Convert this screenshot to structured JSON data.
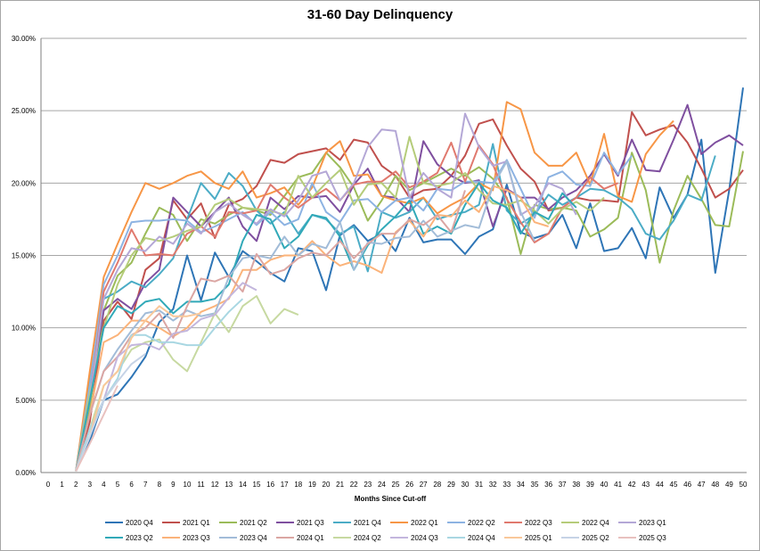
{
  "chart_data": {
    "type": "line",
    "title": "31-60 Day Delinquency",
    "xlabel": "Months Since Cut-off",
    "ylabel": "",
    "xlim": [
      0,
      50
    ],
    "ylim": [
      0,
      0.3
    ],
    "y_ticks": [
      0.0,
      0.05,
      0.1,
      0.15,
      0.2,
      0.25,
      0.3
    ],
    "y_tick_labels": [
      "0.00%",
      "5.00%",
      "10.00%",
      "15.00%",
      "20.00%",
      "25.00%",
      "30.00%"
    ],
    "x": [
      0,
      1,
      2,
      3,
      4,
      5,
      6,
      7,
      8,
      9,
      10,
      11,
      12,
      13,
      14,
      15,
      16,
      17,
      18,
      19,
      20,
      21,
      22,
      23,
      24,
      25,
      26,
      27,
      28,
      29,
      30,
      31,
      32,
      33,
      34,
      35,
      36,
      37,
      38,
      39,
      40,
      41,
      42,
      43,
      44,
      45,
      46,
      47,
      48,
      49,
      50
    ],
    "grid": "horizontal",
    "legend_position": "bottom",
    "series": [
      {
        "name": "2020 Q4",
        "color": "#2e75b6",
        "values": [
          null,
          null,
          0.001,
          0.022,
          0.05,
          0.054,
          0.066,
          0.08,
          0.104,
          0.113,
          0.15,
          0.119,
          0.152,
          0.135,
          0.153,
          0.146,
          0.138,
          0.132,
          0.155,
          0.153,
          0.126,
          0.164,
          0.171,
          0.16,
          0.165,
          0.153,
          0.176,
          0.159,
          0.161,
          0.161,
          0.151,
          0.163,
          0.168,
          0.199,
          0.166,
          0.162,
          0.165,
          0.178,
          0.155,
          0.186,
          0.153,
          0.155,
          0.169,
          0.148,
          0.197,
          0.176,
          0.192,
          0.23,
          0.138,
          0.195,
          0.266
        ]
      },
      {
        "name": "2021 Q1",
        "color": "#c0504d",
        "values": [
          null,
          null,
          0.001,
          0.035,
          0.105,
          0.118,
          0.106,
          0.14,
          0.148,
          0.188,
          0.175,
          0.186,
          0.162,
          0.185,
          0.189,
          0.198,
          0.216,
          0.214,
          0.22,
          0.222,
          0.224,
          0.216,
          0.23,
          0.228,
          0.212,
          0.205,
          0.19,
          0.195,
          0.196,
          0.205,
          0.219,
          0.241,
          0.244,
          0.226,
          0.21,
          0.201,
          0.181,
          0.183,
          0.19,
          0.188,
          0.188,
          0.187,
          0.249,
          0.233,
          0.237,
          0.24,
          0.228,
          0.21,
          0.19,
          0.196,
          0.209
        ]
      },
      {
        "name": "2021 Q2",
        "color": "#9bbb59",
        "values": [
          null,
          null,
          0.001,
          0.045,
          0.112,
          0.136,
          0.145,
          0.165,
          0.183,
          0.178,
          0.16,
          0.175,
          0.172,
          0.178,
          0.183,
          0.181,
          0.178,
          0.191,
          0.204,
          0.207,
          0.221,
          0.211,
          0.197,
          0.174,
          0.188,
          0.205,
          0.195,
          0.2,
          0.205,
          0.21,
          0.205,
          0.211,
          0.203,
          0.19,
          0.151,
          0.185,
          0.182,
          0.183,
          0.181,
          0.163,
          0.168,
          0.176,
          0.221,
          0.195,
          0.145,
          0.181,
          0.205,
          0.189,
          0.171,
          0.17,
          0.222
        ]
      },
      {
        "name": "2021 Q3",
        "color": "#7f4f9f",
        "values": [
          null,
          null,
          0.001,
          0.055,
          0.112,
          0.12,
          0.113,
          0.131,
          0.14,
          0.19,
          0.18,
          0.17,
          0.18,
          0.19,
          0.17,
          0.16,
          0.19,
          0.182,
          0.191,
          0.19,
          0.191,
          0.18,
          0.199,
          0.21,
          0.191,
          0.19,
          0.18,
          0.229,
          0.213,
          0.205,
          0.2,
          0.202,
          0.17,
          0.196,
          0.19,
          0.19,
          0.182,
          0.19,
          0.195,
          0.205,
          0.22,
          0.205,
          0.23,
          0.209,
          0.208,
          0.23,
          0.254,
          0.22,
          0.228,
          0.233,
          0.226
        ]
      },
      {
        "name": "2021 Q4",
        "color": "#4bacc6",
        "values": [
          null,
          null,
          0.001,
          0.065,
          0.12,
          0.125,
          0.132,
          0.128,
          0.137,
          0.148,
          0.175,
          0.2,
          0.189,
          0.207,
          0.198,
          0.181,
          0.172,
          0.18,
          0.165,
          0.178,
          0.175,
          0.165,
          0.17,
          0.139,
          0.18,
          0.176,
          0.18,
          0.19,
          0.175,
          0.178,
          0.18,
          0.185,
          0.227,
          0.181,
          0.172,
          0.178,
          0.192,
          0.185,
          0.19,
          0.196,
          0.195,
          0.19,
          0.182,
          0.165,
          0.161,
          0.174,
          0.192,
          0.188,
          0.219,
          null,
          null
        ]
      },
      {
        "name": "2022 Q1",
        "color": "#f79646",
        "values": [
          null,
          null,
          0.001,
          0.07,
          0.135,
          0.158,
          0.18,
          0.2,
          0.196,
          0.2,
          0.205,
          0.208,
          0.2,
          0.196,
          0.208,
          0.19,
          0.193,
          0.197,
          0.185,
          0.197,
          0.221,
          0.229,
          0.205,
          0.206,
          0.191,
          0.188,
          0.186,
          0.19,
          0.179,
          0.185,
          0.19,
          0.2,
          0.195,
          0.256,
          0.251,
          0.221,
          0.212,
          0.212,
          0.221,
          0.199,
          0.234,
          0.191,
          0.187,
          0.22,
          0.233,
          0.243,
          null,
          null,
          null,
          null,
          null
        ]
      },
      {
        "name": "2022 Q2",
        "color": "#8db3e2",
        "values": [
          null,
          null,
          0.001,
          0.06,
          0.13,
          0.15,
          0.173,
          0.174,
          0.174,
          0.175,
          0.174,
          0.166,
          0.17,
          0.175,
          0.18,
          0.171,
          0.18,
          0.171,
          0.175,
          0.2,
          0.18,
          0.173,
          0.188,
          0.189,
          0.18,
          0.188,
          0.19,
          0.181,
          0.196,
          0.195,
          0.201,
          0.201,
          0.2,
          0.216,
          0.196,
          0.176,
          0.204,
          0.208,
          0.199,
          0.198,
          0.221,
          0.206,
          0.219,
          null,
          null,
          null,
          null,
          null,
          null,
          null,
          null
        ]
      },
      {
        "name": "2022 Q3",
        "color": "#e0796e",
        "values": [
          null,
          null,
          0.001,
          0.05,
          0.125,
          0.145,
          0.168,
          0.15,
          0.151,
          0.15,
          0.165,
          0.17,
          0.163,
          0.18,
          0.179,
          0.181,
          0.199,
          0.19,
          0.183,
          0.19,
          0.196,
          0.188,
          0.199,
          0.201,
          0.201,
          0.208,
          0.197,
          0.201,
          0.207,
          0.228,
          0.201,
          0.226,
          0.213,
          0.189,
          0.173,
          0.159,
          0.165,
          0.183,
          0.19,
          0.204,
          0.196,
          0.2,
          null,
          null,
          null,
          null,
          null,
          null,
          null,
          null,
          null
        ]
      },
      {
        "name": "2022 Q4",
        "color": "#b5cc7a",
        "values": [
          null,
          null,
          0.001,
          0.055,
          0.1,
          0.13,
          0.15,
          0.162,
          0.16,
          0.163,
          0.167,
          0.17,
          0.185,
          0.189,
          0.183,
          0.182,
          0.181,
          0.178,
          0.205,
          0.19,
          0.2,
          0.209,
          0.185,
          0.199,
          0.2,
          0.19,
          0.232,
          0.2,
          0.198,
          0.2,
          0.207,
          0.195,
          0.186,
          0.185,
          0.188,
          0.181,
          0.172,
          0.182,
          0.187,
          0.181,
          0.19,
          null,
          null,
          null,
          null,
          null,
          null,
          null,
          null,
          null,
          null
        ]
      },
      {
        "name": "2023 Q1",
        "color": "#b4a7d6",
        "values": [
          null,
          null,
          0.001,
          0.05,
          0.12,
          0.14,
          0.155,
          0.153,
          0.163,
          0.158,
          0.172,
          0.165,
          0.18,
          0.186,
          0.178,
          0.172,
          0.182,
          0.177,
          0.188,
          0.205,
          0.208,
          0.188,
          0.2,
          0.225,
          0.237,
          0.236,
          0.19,
          0.207,
          0.196,
          0.19,
          0.248,
          0.225,
          0.212,
          0.215,
          0.178,
          0.184,
          0.2,
          0.196,
          0.178,
          null,
          null,
          null,
          null,
          null,
          null,
          null,
          null,
          null,
          null,
          null,
          null
        ]
      },
      {
        "name": "2023 Q2",
        "color": "#31a9b8",
        "values": [
          null,
          null,
          0.001,
          0.05,
          0.1,
          0.115,
          0.11,
          0.118,
          0.12,
          0.11,
          0.118,
          0.118,
          0.12,
          0.13,
          0.16,
          0.178,
          0.175,
          0.155,
          0.163,
          0.178,
          0.176,
          0.163,
          0.14,
          0.157,
          0.168,
          0.177,
          0.188,
          0.165,
          0.17,
          0.165,
          0.185,
          0.2,
          0.188,
          0.183,
          0.165,
          0.18,
          0.175,
          0.193,
          0.183,
          null,
          null,
          null,
          null,
          null,
          null,
          null,
          null,
          null,
          null,
          null,
          null
        ]
      },
      {
        "name": "2023 Q3",
        "color": "#fbb37a",
        "values": [
          null,
          null,
          0.001,
          0.04,
          0.09,
          0.095,
          0.105,
          0.105,
          0.1,
          0.094,
          0.1,
          0.111,
          0.115,
          0.12,
          0.14,
          0.14,
          0.147,
          0.15,
          0.15,
          0.16,
          0.15,
          0.143,
          0.146,
          0.143,
          0.138,
          0.166,
          0.174,
          0.163,
          0.178,
          0.177,
          0.188,
          0.18,
          0.198,
          0.195,
          0.19,
          0.173,
          0.17,
          null,
          null,
          null,
          null,
          null,
          null,
          null,
          null,
          null,
          null,
          null,
          null,
          null,
          null
        ]
      },
      {
        "name": "2023 Q4",
        "color": "#a2bcd8",
        "values": [
          null,
          null,
          0.001,
          0.04,
          0.07,
          0.085,
          0.098,
          0.11,
          0.112,
          0.105,
          0.112,
          0.108,
          0.11,
          0.135,
          0.148,
          0.15,
          0.148,
          0.163,
          0.15,
          0.158,
          0.155,
          0.173,
          0.14,
          0.159,
          0.158,
          0.162,
          0.163,
          0.174,
          0.163,
          0.167,
          0.171,
          0.169,
          0.198,
          0.215,
          0.18,
          0.16,
          null,
          null,
          null,
          null,
          null,
          null,
          null,
          null,
          null,
          null,
          null,
          null,
          null,
          null,
          null
        ]
      },
      {
        "name": "2024 Q1",
        "color": "#dba6a3",
        "values": [
          null,
          null,
          0.001,
          0.04,
          0.07,
          0.08,
          0.095,
          0.1,
          0.11,
          0.093,
          0.115,
          0.134,
          0.132,
          0.136,
          0.125,
          0.151,
          0.137,
          0.14,
          0.148,
          0.152,
          0.15,
          0.16,
          0.148,
          0.158,
          0.165,
          0.165,
          0.175,
          0.171,
          0.178,
          0.166,
          0.195,
          null,
          null,
          null,
          null,
          null,
          null,
          null,
          null,
          null,
          null,
          null,
          null,
          null,
          null,
          null,
          null,
          null,
          null,
          null,
          null
        ]
      },
      {
        "name": "2024 Q2",
        "color": "#c7d9a1",
        "values": [
          null,
          null,
          0.001,
          0.03,
          0.06,
          0.07,
          0.085,
          0.09,
          0.092,
          0.078,
          0.07,
          0.09,
          0.11,
          0.097,
          0.115,
          0.122,
          0.103,
          0.113,
          0.109,
          null,
          null,
          null,
          null,
          null,
          null,
          null,
          null,
          null,
          null,
          null,
          null,
          null,
          null,
          null,
          null,
          null,
          null,
          null,
          null,
          null,
          null,
          null,
          null,
          null,
          null,
          null,
          null,
          null,
          null,
          null,
          null
        ]
      },
      {
        "name": "2024 Q3",
        "color": "#c3b6dd",
        "values": [
          null,
          null,
          0.001,
          0.03,
          0.05,
          0.08,
          0.088,
          0.089,
          0.085,
          0.096,
          0.098,
          0.106,
          0.109,
          0.121,
          0.131,
          0.126,
          null,
          null,
          null,
          null,
          null,
          null,
          null,
          null,
          null,
          null,
          null,
          null,
          null,
          null,
          null,
          null,
          null,
          null,
          null,
          null,
          null,
          null,
          null,
          null,
          null,
          null,
          null,
          null,
          null,
          null,
          null,
          null,
          null,
          null,
          null
        ]
      },
      {
        "name": "2024 Q4",
        "color": "#a9d7e2",
        "values": [
          null,
          null,
          0.001,
          0.03,
          0.05,
          0.065,
          0.095,
          0.095,
          0.09,
          0.09,
          0.088,
          0.088,
          0.1,
          0.111,
          0.12,
          null,
          null,
          null,
          null,
          null,
          null,
          null,
          null,
          null,
          null,
          null,
          null,
          null,
          null,
          null,
          null,
          null,
          null,
          null,
          null,
          null,
          null,
          null,
          null,
          null,
          null,
          null,
          null,
          null,
          null,
          null,
          null,
          null,
          null,
          null,
          null
        ]
      },
      {
        "name": "2025 Q1",
        "color": "#f9c89a",
        "values": [
          null,
          null,
          0.001,
          0.025,
          0.06,
          0.07,
          0.093,
          0.105,
          0.115,
          0.108,
          0.108,
          0.11,
          null,
          null,
          null,
          null,
          null,
          null,
          null,
          null,
          null,
          null,
          null,
          null,
          null,
          null,
          null,
          null,
          null,
          null,
          null,
          null,
          null,
          null,
          null,
          null,
          null,
          null,
          null,
          null,
          null,
          null,
          null,
          null,
          null,
          null,
          null,
          null,
          null,
          null,
          null
        ]
      },
      {
        "name": "2025 Q2",
        "color": "#c6d3e6",
        "values": [
          null,
          null,
          0.001,
          0.025,
          0.05,
          0.063,
          0.075,
          0.082,
          null,
          null,
          null,
          null,
          null,
          null,
          null,
          null,
          null,
          null,
          null,
          null,
          null,
          null,
          null,
          null,
          null,
          null,
          null,
          null,
          null,
          null,
          null,
          null,
          null,
          null,
          null,
          null,
          null,
          null,
          null,
          null,
          null,
          null,
          null,
          null,
          null,
          null,
          null,
          null,
          null,
          null,
          null
        ]
      },
      {
        "name": "2025 Q3",
        "color": "#e8c1bf",
        "values": [
          null,
          null,
          0.001,
          0.02,
          0.04,
          0.06,
          null,
          null,
          null,
          null,
          null,
          null,
          null,
          null,
          null,
          null,
          null,
          null,
          null,
          null,
          null,
          null,
          null,
          null,
          null,
          null,
          null,
          null,
          null,
          null,
          null,
          null,
          null,
          null,
          null,
          null,
          null,
          null,
          null,
          null,
          null,
          null,
          null,
          null,
          null,
          null,
          null,
          null,
          null,
          null,
          null
        ]
      }
    ]
  }
}
